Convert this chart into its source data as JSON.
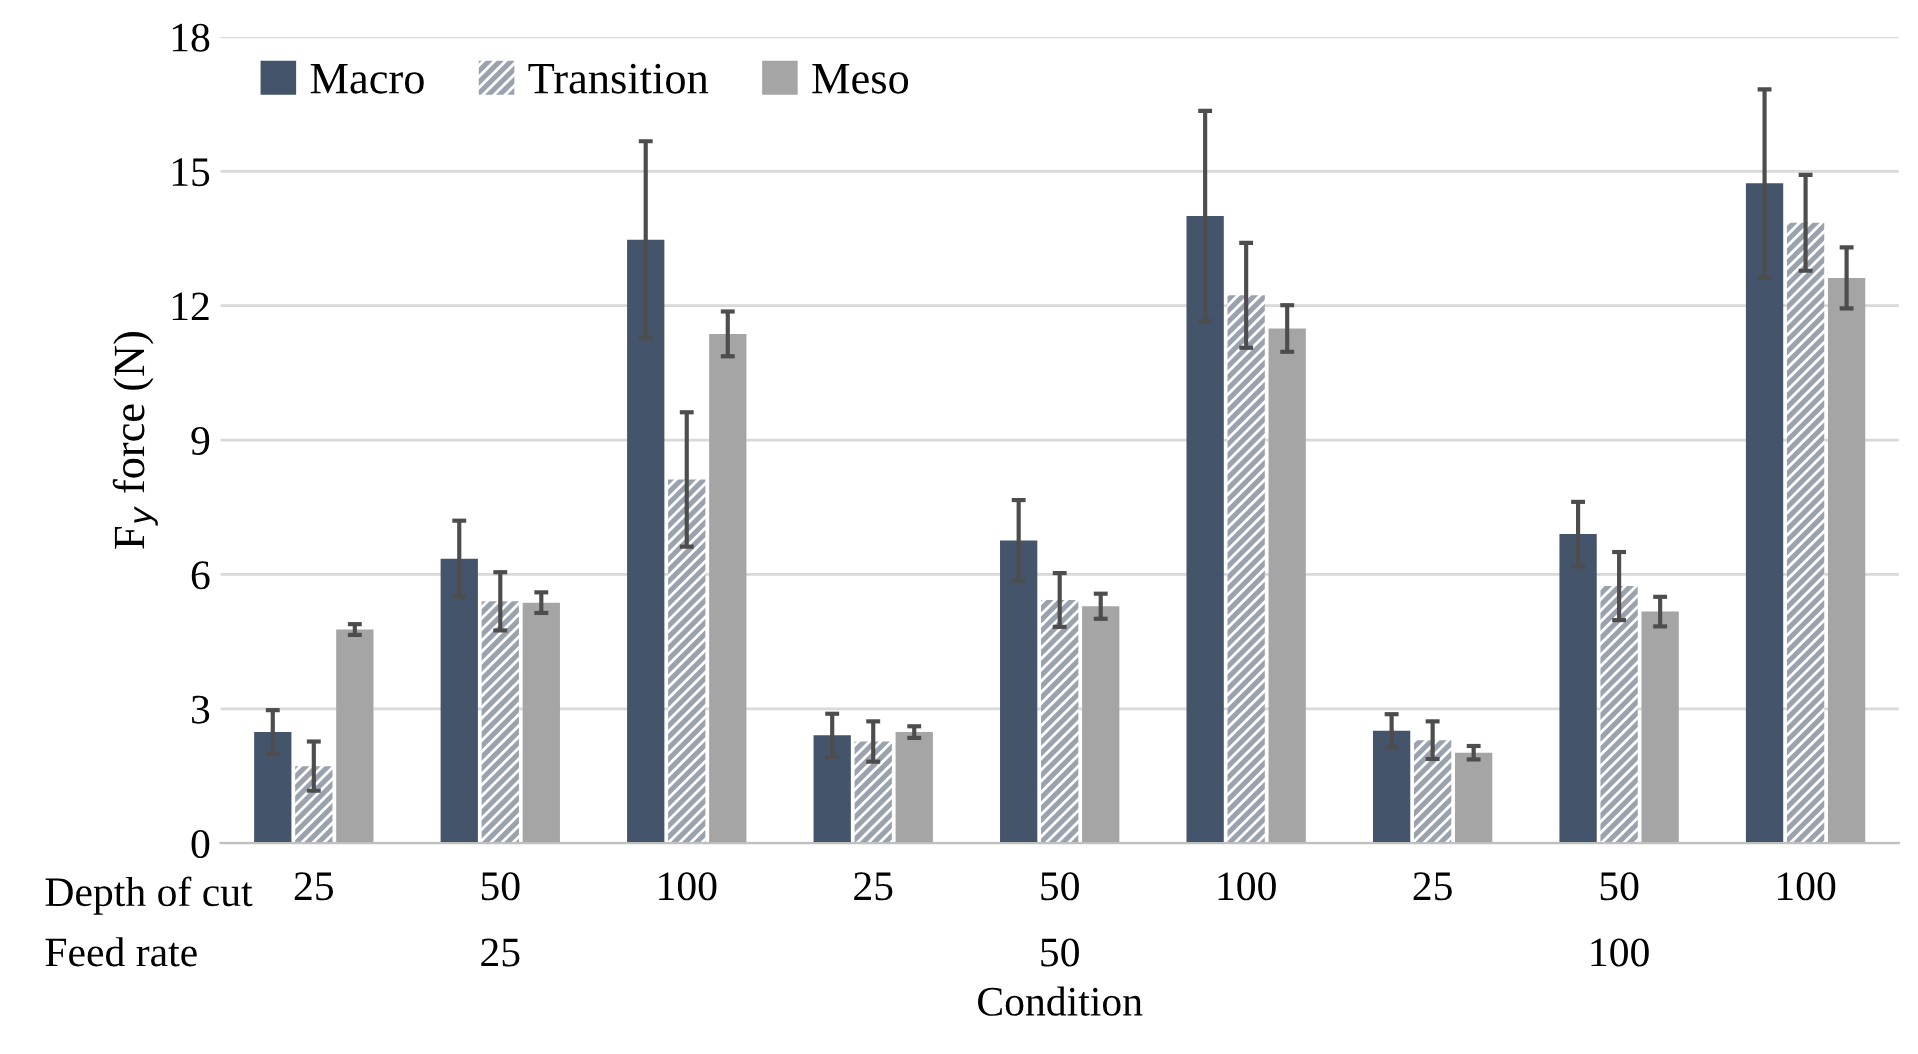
{
  "chart_data": {
    "type": "bar",
    "xlabel": "Condition",
    "ylabel": "F$_{y}$ force (N)",
    "categories": [
      "25",
      "50",
      "100",
      "25",
      "50",
      "100",
      "25",
      "50",
      "100"
    ],
    "series": [
      {
        "name": "Macro",
        "color": "#44546a",
        "values": [
          2.48,
          6.35,
          13.47,
          2.41,
          6.76,
          14.0,
          2.51,
          6.9,
          14.73
        ],
        "errors": [
          0.49,
          0.85,
          2.2,
          0.48,
          0.9,
          2.35,
          0.37,
          0.72,
          2.1
        ]
      },
      {
        "name": "Transition",
        "color": "#9aa2ae",
        "values": [
          1.72,
          5.4,
          8.12,
          2.27,
          5.43,
          12.23,
          2.3,
          5.74,
          13.85
        ],
        "errors": [
          0.55,
          0.65,
          1.5,
          0.45,
          0.6,
          1.17,
          0.42,
          0.76,
          1.07
        ]
      },
      {
        "name": "Meso",
        "color": "#a5a5a5",
        "values": [
          4.77,
          5.37,
          11.37,
          2.48,
          5.29,
          11.49,
          2.02,
          5.17,
          12.62
        ],
        "errors": [
          0.12,
          0.23,
          0.5,
          0.13,
          0.28,
          0.52,
          0.15,
          0.33,
          0.68
        ]
      }
    ],
    "annotations": [
      "Depth of cut",
      "Feed rate",
      "25",
      "50",
      "100"
    ],
    "ylim": [
      0,
      18
    ],
    "yticks": [
      0,
      3,
      6,
      9,
      12,
      15,
      18
    ],
    "grid": "y",
    "legend": "top left"
  }
}
